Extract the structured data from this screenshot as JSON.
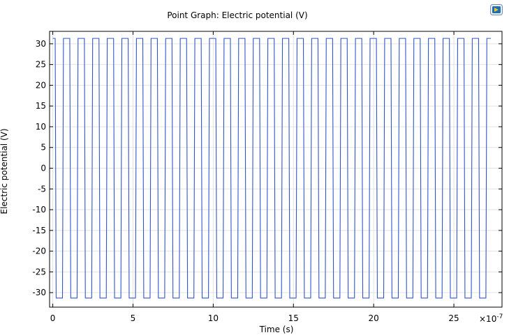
{
  "chart_data": {
    "type": "line",
    "title": "Point Graph: Electric potential (V)",
    "xlabel": "Time (s)",
    "ylabel": "Electric potential (V)",
    "x_scale_label": "×10",
    "x_scale_exponent": "-7",
    "xlim": [
      -0.2,
      28.0
    ],
    "ylim": [
      -33.5,
      33.0
    ],
    "xticks": [
      0,
      5,
      10,
      15,
      20,
      25
    ],
    "yticks": [
      30,
      25,
      20,
      15,
      10,
      5,
      0,
      -5,
      -10,
      -15,
      -20,
      -25,
      -30
    ],
    "grid": true,
    "legend": "none",
    "series": [
      {
        "color": "#3355cc",
        "waveform": "square",
        "amplitude_high": 31.3,
        "amplitude_low": -31.3,
        "period": 0.91,
        "t_start": 0,
        "t_end": 27.3,
        "first_fall": 0.15
      }
    ]
  }
}
